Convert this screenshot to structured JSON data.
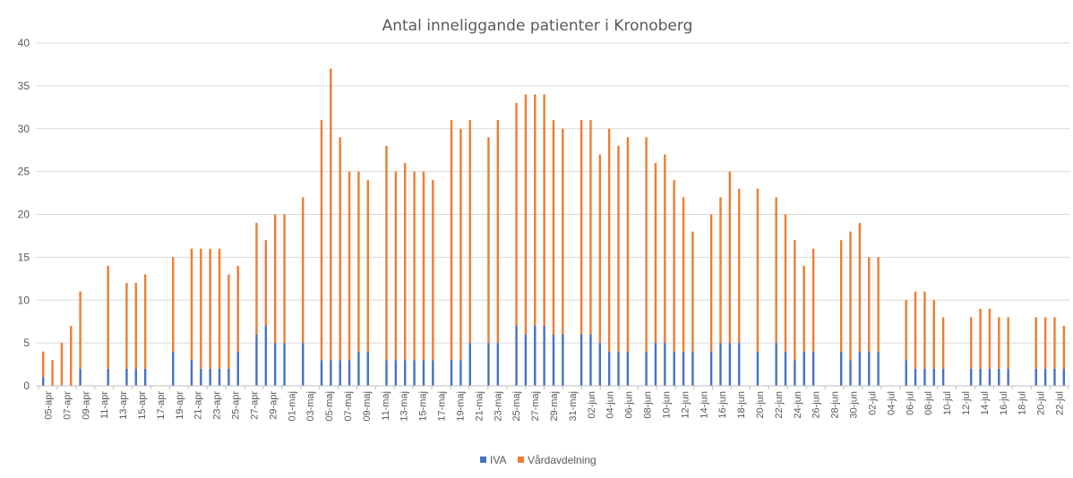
{
  "chart_data": {
    "type": "bar",
    "stacked": true,
    "title": "Antal inneliggande patienter i Kronoberg",
    "ylim": [
      0,
      40
    ],
    "yticks": [
      0,
      5,
      10,
      15,
      20,
      25,
      30,
      35,
      40
    ],
    "grid": true,
    "legend_position": "bottom",
    "x_tick_labels": [
      "05-apr",
      "07-apr",
      "09-apr",
      "11-apr",
      "13-apr",
      "15-apr",
      "17-apr",
      "19-apr",
      "21-apr",
      "23-apr",
      "25-apr",
      "27-apr",
      "29-apr",
      "01-maj",
      "03-maj",
      "05-maj",
      "07-maj",
      "09-maj",
      "11-maj",
      "13-maj",
      "15-maj",
      "17-maj",
      "19-maj",
      "21-maj",
      "23-maj",
      "25-maj",
      "27-maj",
      "29-maj",
      "31-maj",
      "02-jun",
      "04-jun",
      "06-jun",
      "08-jun",
      "10-jun",
      "12-jun",
      "14-jun",
      "16-jun",
      "18-jun",
      "20-jun",
      "22-jun",
      "24-jun",
      "26-jun",
      "28-jun",
      "30-jun",
      "02-jul",
      "04-jul",
      "06-jul",
      "08-jul",
      "10-jul",
      "12-jul",
      "14-jul",
      "16-jul",
      "18-jul",
      "20-jul",
      "22-jul"
    ],
    "series": [
      {
        "name": "IVA",
        "color": "#4472c4",
        "values": [
          1,
          0,
          0,
          0,
          2,
          null,
          null,
          2,
          null,
          2,
          2,
          2,
          null,
          null,
          4,
          null,
          3,
          2,
          2,
          2,
          2,
          4,
          null,
          6,
          7,
          5,
          5,
          null,
          5,
          null,
          3,
          3,
          3,
          3,
          4,
          4,
          null,
          3,
          3,
          3,
          3,
          3,
          3,
          null,
          3,
          3,
          5,
          null,
          5,
          5,
          null,
          7,
          6,
          7,
          7,
          6,
          6,
          null,
          6,
          6,
          5,
          4,
          4,
          4,
          null,
          4,
          5,
          5,
          4,
          4,
          4,
          null,
          4,
          5,
          5,
          5,
          null,
          4,
          null,
          5,
          4,
          3,
          4,
          4,
          null,
          null,
          4,
          3,
          4,
          4,
          4,
          null,
          null,
          3,
          2,
          2,
          2,
          2,
          null,
          null,
          2,
          2,
          2,
          2,
          2,
          null,
          null,
          2,
          2,
          2,
          2
        ]
      },
      {
        "name": "Vårdavdelning",
        "color": "#ed7d31",
        "values": [
          3,
          3,
          5,
          7,
          9,
          null,
          null,
          12,
          null,
          10,
          10,
          11,
          null,
          null,
          11,
          null,
          13,
          14,
          14,
          14,
          11,
          10,
          null,
          13,
          10,
          15,
          15,
          null,
          17,
          null,
          28,
          34,
          26,
          22,
          21,
          20,
          null,
          25,
          22,
          23,
          22,
          22,
          21,
          null,
          28,
          27,
          26,
          null,
          24,
          26,
          null,
          26,
          28,
          27,
          27,
          25,
          24,
          null,
          25,
          25,
          22,
          26,
          24,
          25,
          null,
          25,
          21,
          22,
          20,
          18,
          14,
          null,
          16,
          17,
          20,
          18,
          null,
          19,
          null,
          17,
          16,
          14,
          10,
          12,
          null,
          null,
          13,
          15,
          15,
          11,
          11,
          null,
          null,
          7,
          9,
          9,
          8,
          6,
          null,
          null,
          6,
          7,
          7,
          6,
          6,
          null,
          null,
          6,
          6,
          6,
          5
        ]
      }
    ]
  }
}
